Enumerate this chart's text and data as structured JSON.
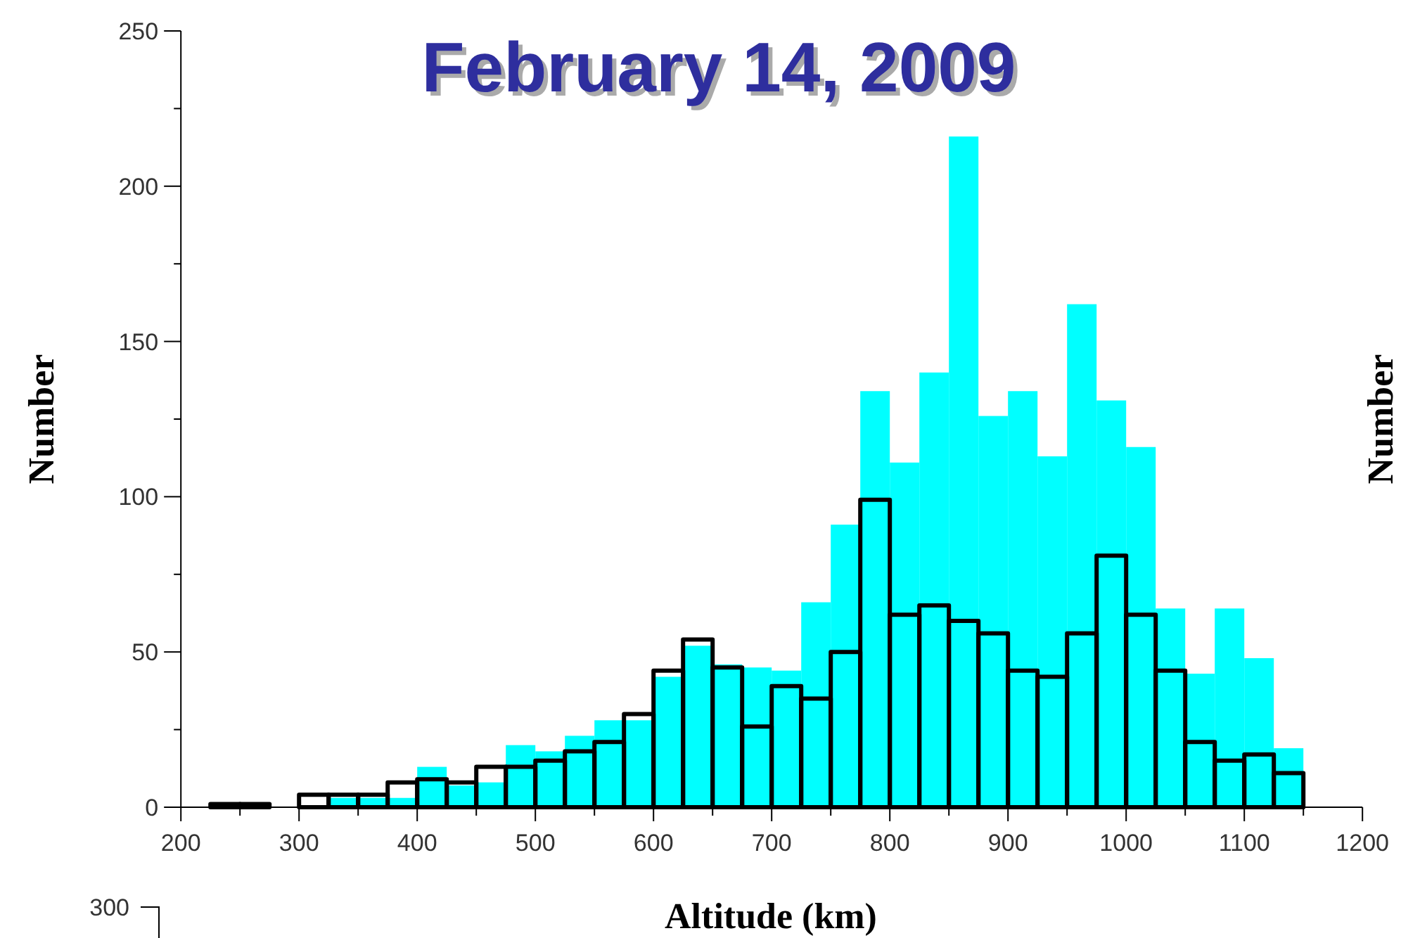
{
  "chart_data": {
    "type": "histogram",
    "title": "February 14, 2009",
    "xlabel": "Altitude (km)",
    "ylabel": "Number",
    "y2label": "Number",
    "bins": [
      225,
      250,
      275,
      300,
      325,
      350,
      375,
      400,
      425,
      450,
      475,
      500,
      525,
      550,
      575,
      600,
      625,
      650,
      675,
      700,
      725,
      750,
      775,
      800,
      825,
      850,
      875,
      900,
      925,
      950,
      975,
      1000,
      1025,
      1050,
      1075,
      1100,
      1125,
      1150
    ],
    "series": [
      {
        "color": "#00ffff",
        "values": [
          null,
          null,
          null,
          0,
          3,
          3,
          3,
          13,
          7,
          8,
          20,
          18,
          23,
          28,
          28,
          42,
          52,
          46,
          45,
          44,
          66,
          91,
          134,
          111,
          140,
          216,
          126,
          134,
          113,
          162,
          131,
          116,
          64,
          43,
          64,
          48,
          19
        ]
      },
      {
        "color": "#000000",
        "values": [
          1,
          1,
          null,
          4,
          4,
          4,
          8,
          9,
          8,
          13,
          13,
          15,
          18,
          21,
          30,
          44,
          54,
          45,
          26,
          39,
          35,
          50,
          99,
          62,
          65,
          60,
          56,
          44,
          42,
          56,
          81,
          62,
          44,
          21,
          15,
          17,
          11
        ]
      }
    ],
    "xlim": [
      200,
      1200
    ],
    "xticks": [
      200,
      {
        "value": 250,
        "label": null
      },
      300,
      {
        "value": 350,
        "label": null
      },
      400,
      {
        "value": 450,
        "label": null
      },
      500,
      {
        "value": 550,
        "label": null
      },
      600,
      {
        "value": 650,
        "label": null
      },
      700,
      {
        "value": 750,
        "label": null
      },
      800,
      {
        "value": 850,
        "label": null
      },
      900,
      {
        "value": 950,
        "label": null
      },
      1000,
      {
        "value": 1050,
        "label": null
      },
      1100,
      {
        "value": 1150,
        "label": null
      },
      1200
    ],
    "ylim": [
      0,
      250
    ],
    "yticks": [
      0,
      {
        "value": 25,
        "label": null
      },
      50,
      {
        "value": 75,
        "label": null
      },
      100,
      {
        "value": 125,
        "label": null
      },
      150,
      {
        "value": 175,
        "label": null
      },
      200,
      {
        "value": 225,
        "label": null
      },
      250
    ],
    "annotations": [
      "300"
    ],
    "grid": false
  }
}
